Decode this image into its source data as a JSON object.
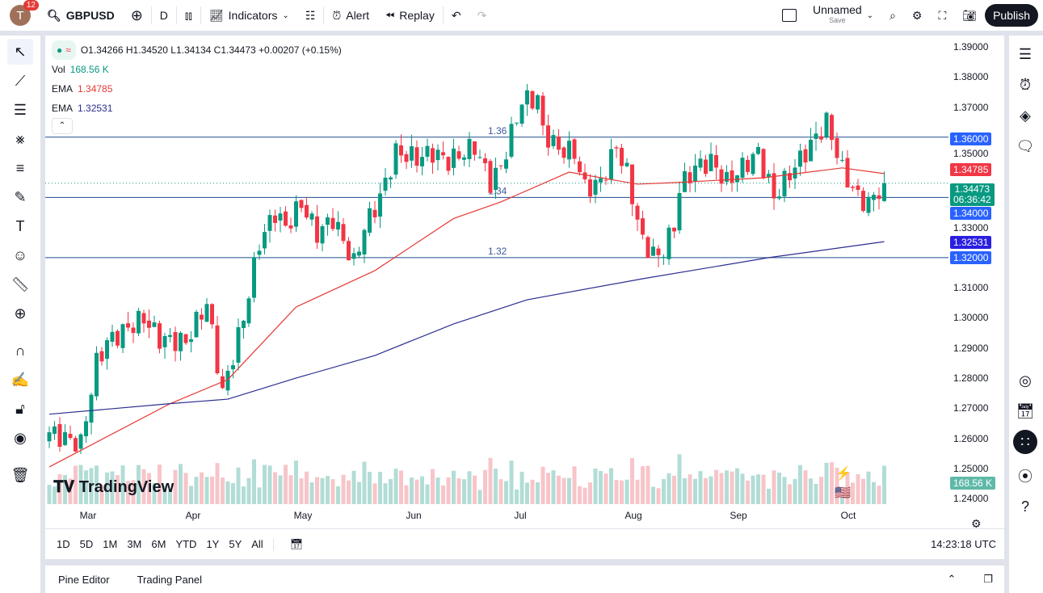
{
  "topbar": {
    "avatar_letter": "T",
    "notifications": "12",
    "symbol": "GBPUSD",
    "interval": "D",
    "indicators": "Indicators",
    "alert": "Alert",
    "replay": "Replay",
    "layout_name": "Unnamed",
    "layout_sub": "Save",
    "publish": "Publish"
  },
  "legend": {
    "ohlc": "O1.34266 H1.34520 L1.34134 C1.34473 +0.00207 (+0.15%)",
    "vol_label": "Vol",
    "vol_value": "168.56 K",
    "ema1_label": "EMA",
    "ema1_value": "1.34785",
    "ema2_label": "EMA",
    "ema2_value": "1.32531"
  },
  "colors": {
    "up": "#089981",
    "down": "#f23645",
    "ema_fast": "#e53935",
    "ema_slow": "#2a2e8f",
    "hline": "#1e4d8c",
    "tag_blue": "#2962ff"
  },
  "price_axis": [
    "1.39000",
    "1.38000",
    "1.37000",
    "1.35000",
    "1.33000",
    "1.31000",
    "1.30000",
    "1.29000",
    "1.28000",
    "1.27000",
    "1.26000",
    "1.25000",
    "1.24000"
  ],
  "tags": {
    "level_136": "1.36000",
    "ema_fast": "1.34785",
    "last": "1.34473",
    "countdown": "06:36:42",
    "level_134": "1.34000",
    "ema_slow": "1.32531",
    "level_132": "1.32000",
    "volume": "168.56 K"
  },
  "hlines": [
    {
      "price": 1.36,
      "label": "1.36"
    },
    {
      "price": 1.34,
      "label": "1.34"
    },
    {
      "price": 1.32,
      "label": "1.32"
    }
  ],
  "months": [
    "Mar",
    "Apr",
    "May",
    "Jun",
    "Jul",
    "Aug",
    "Sep",
    "Oct"
  ],
  "brand": "TradingView",
  "range": [
    "1D",
    "5D",
    "1M",
    "3M",
    "6M",
    "YTD",
    "1Y",
    "5Y",
    "All"
  ],
  "clock": "14:23:18 UTC",
  "bottom": {
    "pine": "Pine Editor",
    "panel": "Trading Panel"
  },
  "chart_data": {
    "type": "candlestick",
    "symbol": "GBPUSD",
    "ylim": [
      1.24,
      1.39
    ],
    "close_keypoints": [
      [
        "2025-02-19",
        1.262
      ],
      [
        "2025-02-27",
        1.258
      ],
      [
        "2025-03-04",
        1.285
      ],
      [
        "2025-03-06",
        1.292
      ],
      [
        "2025-03-17",
        1.3
      ],
      [
        "2025-03-20",
        1.293
      ],
      [
        "2025-03-27",
        1.292
      ],
      [
        "2025-04-02",
        1.305
      ],
      [
        "2025-04-07",
        1.275
      ],
      [
        "2025-04-11",
        1.3
      ],
      [
        "2025-04-16",
        1.325
      ],
      [
        "2025-04-21",
        1.335
      ],
      [
        "2025-04-23",
        1.33
      ],
      [
        "2025-04-28",
        1.338
      ],
      [
        "2025-05-01",
        1.328
      ],
      [
        "2025-05-06",
        1.333
      ],
      [
        "2025-05-12",
        1.318
      ],
      [
        "2025-05-14",
        1.33
      ],
      [
        "2025-05-19",
        1.34
      ],
      [
        "2025-05-22",
        1.355
      ],
      [
        "2025-05-28",
        1.353
      ],
      [
        "2025-06-02",
        1.355
      ],
      [
        "2025-06-05",
        1.352
      ],
      [
        "2025-06-12",
        1.357
      ],
      [
        "2025-06-17",
        1.345
      ],
      [
        "2025-06-19",
        1.35
      ],
      [
        "2025-06-25",
        1.372
      ],
      [
        "2025-06-30",
        1.373
      ],
      [
        "2025-07-01",
        1.362
      ],
      [
        "2025-07-04",
        1.356
      ],
      [
        "2025-07-09",
        1.355
      ],
      [
        "2025-07-11",
        1.343
      ],
      [
        "2025-07-16",
        1.345
      ],
      [
        "2025-07-21",
        1.357
      ],
      [
        "2025-07-23",
        1.348
      ],
      [
        "2025-07-28",
        1.325
      ],
      [
        "2025-07-31",
        1.32
      ],
      [
        "2025-08-05",
        1.33
      ],
      [
        "2025-08-06",
        1.343
      ],
      [
        "2025-08-11",
        1.35
      ],
      [
        "2025-08-14",
        1.352
      ],
      [
        "2025-08-19",
        1.345
      ],
      [
        "2025-08-22",
        1.35
      ],
      [
        "2025-08-27",
        1.355
      ],
      [
        "2025-09-01",
        1.34
      ],
      [
        "2025-09-04",
        1.348
      ],
      [
        "2025-09-09",
        1.355
      ],
      [
        "2025-09-15",
        1.365
      ],
      [
        "2025-09-17",
        1.355
      ],
      [
        "2025-09-18",
        1.349
      ],
      [
        "2025-09-23",
        1.34
      ],
      [
        "2025-09-25",
        1.338
      ],
      [
        "2025-09-30",
        1.34473
      ]
    ],
    "ema_fast": [
      [
        "2025-02-19",
        1.2505
      ],
      [
        "2025-03-24",
        1.2715
      ],
      [
        "2025-04-08",
        1.2795
      ],
      [
        "2025-04-25",
        1.3036
      ],
      [
        "2025-05-16",
        1.3157
      ],
      [
        "2025-06-06",
        1.333
      ],
      [
        "2025-06-19",
        1.3385
      ],
      [
        "2025-07-08",
        1.3484
      ],
      [
        "2025-07-25",
        1.3444
      ],
      [
        "2025-08-06",
        1.345
      ],
      [
        "2025-08-28",
        1.3465
      ],
      [
        "2025-09-18",
        1.3498
      ],
      [
        "2025-09-30",
        1.3479
      ]
    ],
    "ema_slow": [
      [
        "2025-02-19",
        1.268
      ],
      [
        "2025-03-24",
        1.2715
      ],
      [
        "2025-04-08",
        1.273
      ],
      [
        "2025-04-25",
        1.28
      ],
      [
        "2025-05-16",
        1.2875
      ],
      [
        "2025-06-06",
        1.298
      ],
      [
        "2025-06-26",
        1.306
      ],
      [
        "2025-07-28",
        1.313
      ],
      [
        "2025-08-29",
        1.32
      ],
      [
        "2025-09-30",
        1.3253
      ]
    ]
  }
}
